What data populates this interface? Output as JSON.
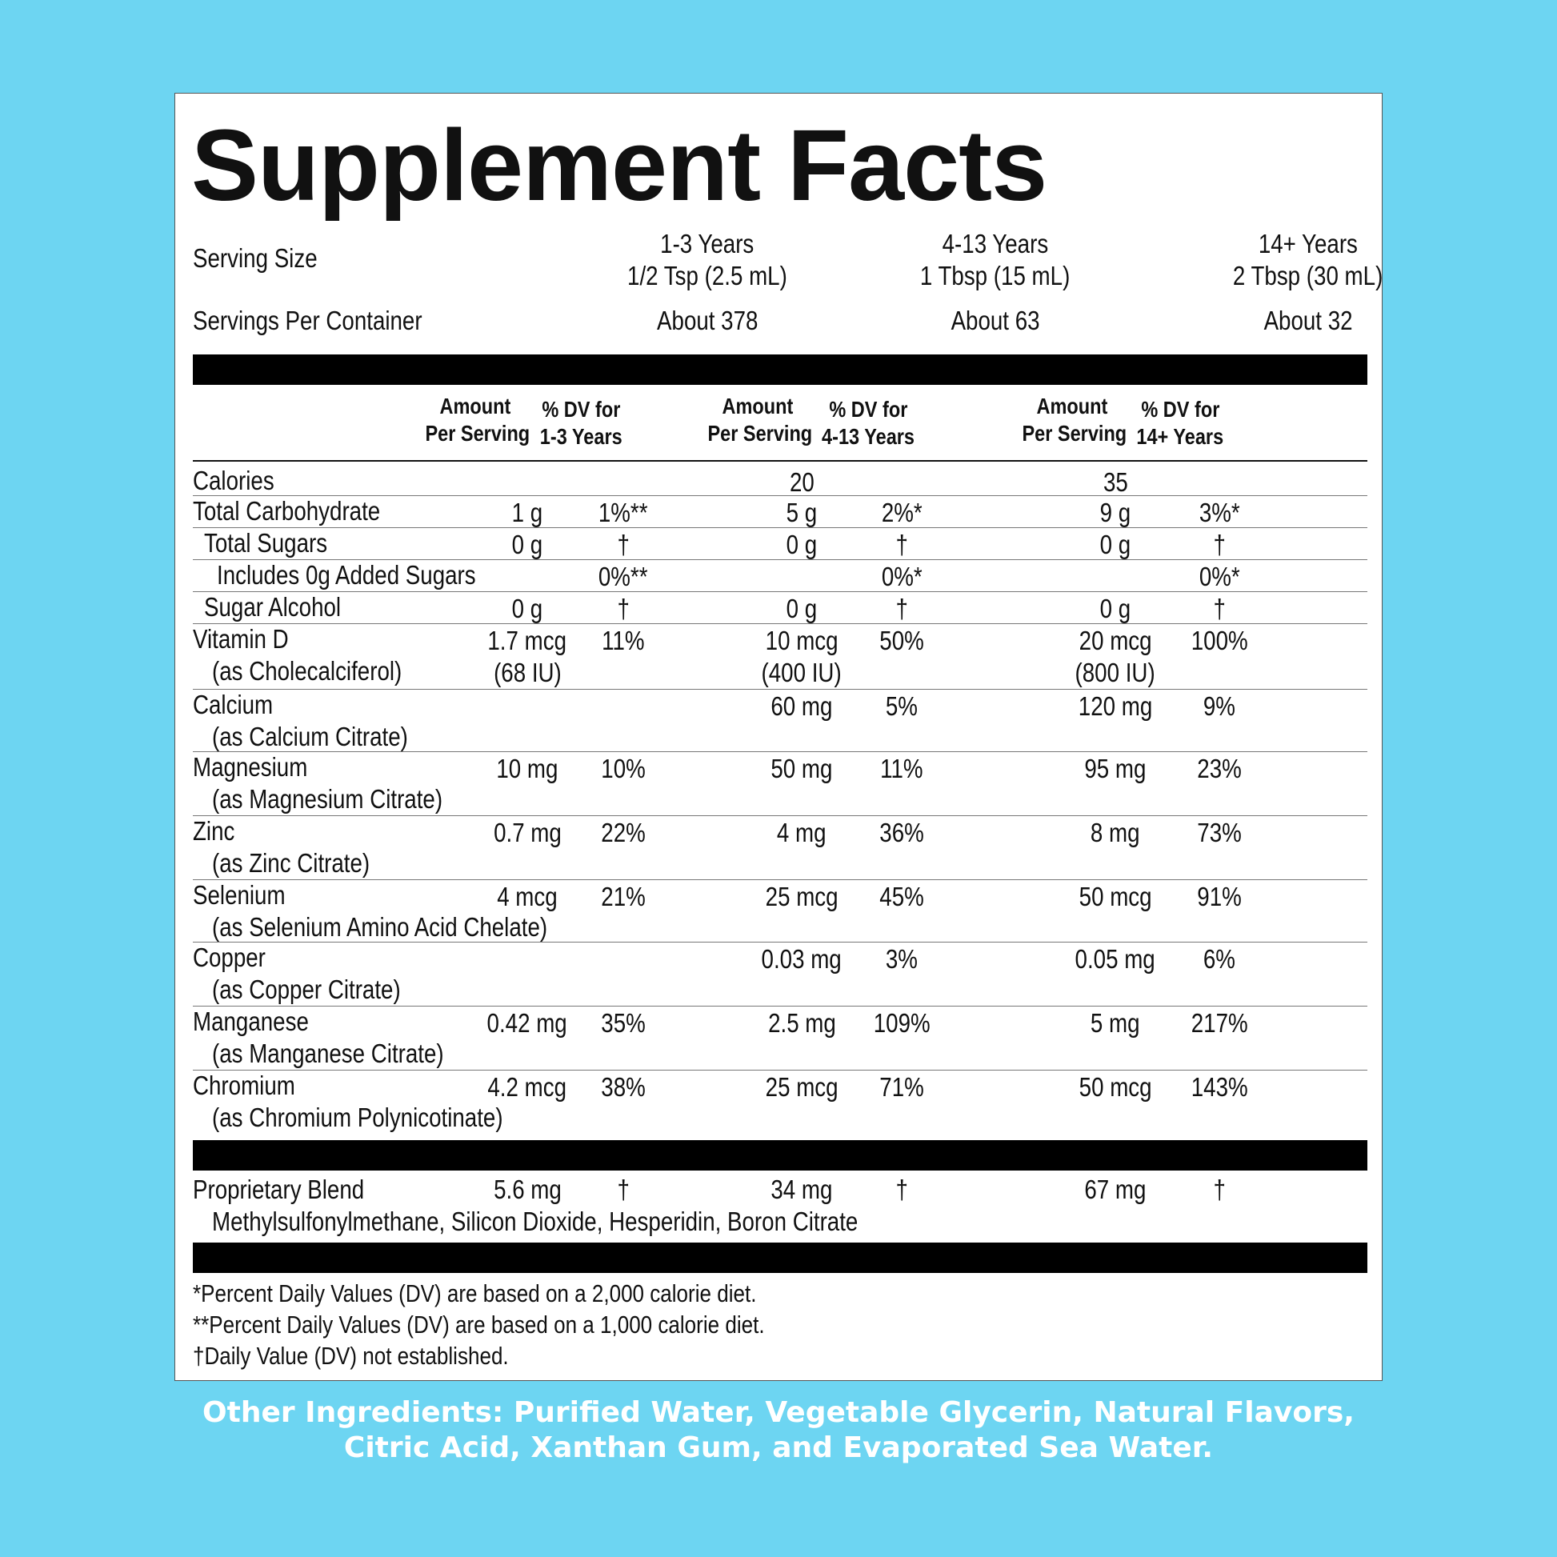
{
  "title": "Supplement Facts",
  "serving": {
    "size_label": "Serving Size",
    "per_container_label": "Servings Per Container",
    "groups": [
      {
        "age": "1-3 Years",
        "size": "1/2 Tsp (2.5 mL)",
        "per_container": "About 378"
      },
      {
        "age": "4-13 Years",
        "size": "1 Tbsp (15 mL)",
        "per_container": "About 63"
      },
      {
        "age": "14+ Years",
        "size": "2 Tbsp (30 mL)",
        "per_container": "About 32"
      }
    ]
  },
  "headers": [
    {
      "amount_l1": "Amount",
      "amount_l2": "Per Serving",
      "dv_l1": "% DV for",
      "dv_l2": "1-3 Years"
    },
    {
      "amount_l1": "Amount",
      "amount_l2": "Per Serving",
      "dv_l1": "% DV for",
      "dv_l2": "4-13 Years"
    },
    {
      "amount_l1": "Amount",
      "amount_l2": "Per Serving",
      "dv_l1": "% DV for",
      "dv_l2": "14+ Years"
    }
  ],
  "rows": [
    {
      "name": "Calories",
      "sub": "",
      "v": [
        "",
        "",
        "20",
        "",
        "35",
        ""
      ]
    },
    {
      "name": "Total Carbohydrate",
      "sub": "",
      "v": [
        "1 g",
        "1%**",
        "5 g",
        "2%*",
        "9 g",
        "3%*"
      ]
    },
    {
      "name": "Total Sugars",
      "sub": "",
      "v": [
        "0 g",
        "†",
        "0 g",
        "†",
        "0 g",
        "†"
      ]
    },
    {
      "name": "Includes 0g Added Sugars",
      "sub": "",
      "v": [
        "",
        "0%**",
        "",
        "0%*",
        "",
        "0%*"
      ]
    },
    {
      "name": "Sugar Alcohol",
      "sub": "",
      "v": [
        "0 g",
        "†",
        "0 g",
        "†",
        "0 g",
        "†"
      ]
    },
    {
      "name": "Vitamin D",
      "sub": "(as Cholecalciferol)",
      "v": [
        "1.7 mcg",
        "11%",
        "10 mcg",
        "50%",
        "20 mcg",
        "100%"
      ],
      "v2": [
        "(68 IU)",
        "(400 IU)",
        "(800 IU)"
      ]
    },
    {
      "name": "Calcium",
      "sub": "(as Calcium Citrate)",
      "v": [
        "",
        "",
        "60 mg",
        "5%",
        "120 mg",
        "9%"
      ]
    },
    {
      "name": "Magnesium",
      "sub": "(as Magnesium Citrate)",
      "v": [
        "10 mg",
        "10%",
        "50 mg",
        "11%",
        "95 mg",
        "23%"
      ]
    },
    {
      "name": "Zinc",
      "sub": "(as Zinc Citrate)",
      "v": [
        "0.7 mg",
        "22%",
        "4 mg",
        "36%",
        "8 mg",
        "73%"
      ]
    },
    {
      "name": "Selenium",
      "sub": "(as Selenium Amino Acid Chelate)",
      "v": [
        "4 mcg",
        "21%",
        "25 mcg",
        "45%",
        "50 mcg",
        "91%"
      ]
    },
    {
      "name": "Copper",
      "sub": "(as Copper Citrate)",
      "v": [
        "",
        "",
        "0.03 mg",
        "3%",
        "0.05 mg",
        "6%"
      ]
    },
    {
      "name": "Manganese",
      "sub": "(as Manganese Citrate)",
      "v": [
        "0.42 mg",
        "35%",
        "2.5 mg",
        "109%",
        "5 mg",
        "217%"
      ]
    },
    {
      "name": "Chromium",
      "sub": "(as Chromium Polynicotinate)",
      "v": [
        "4.2 mcg",
        "38%",
        "25 mcg",
        "71%",
        "50 mcg",
        "143%"
      ]
    }
  ],
  "blend": {
    "name": "Proprietary Blend",
    "ingredients": "Methylsulfonylmethane, Silicon Dioxide, Hesperidin, Boron Citrate",
    "v": [
      "5.6 mg",
      "†",
      "34 mg",
      "†",
      "67 mg",
      "†"
    ]
  },
  "footnotes": [
    "*Percent Daily Values (DV) are based on a 2,000 calorie diet.",
    "**Percent Daily Values (DV) are based on a 1,000 calorie diet.",
    "†Daily Value (DV) not established."
  ],
  "other_ingredients": [
    "Other Ingredients: Purified Water, Vegetable Glycerin, Natural Flavors,",
    "Citric Acid, Xanthan Gum, and Evaporated Sea Water."
  ]
}
